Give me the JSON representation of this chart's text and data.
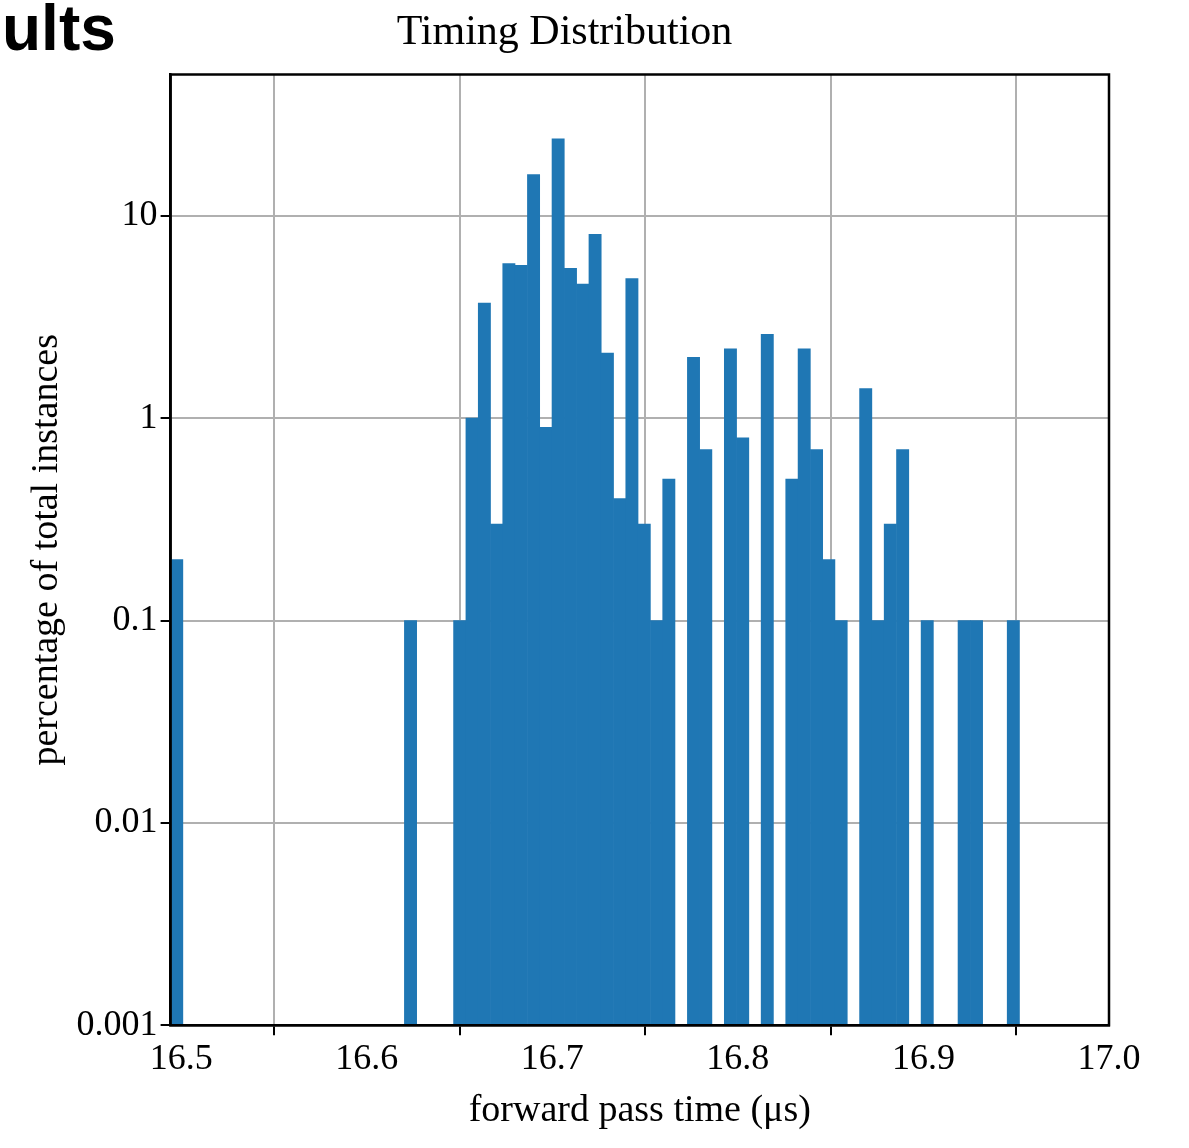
{
  "chart_data": {
    "type": "histogram",
    "title": "Timing Distribution",
    "xlabel": "forward pass time (μs)",
    "ylabel": "percentage of total instances",
    "annotations": [
      "ults"
    ],
    "bins": [
      16.4943,
      16.5009,
      16.5076,
      16.5142,
      16.5208,
      16.5275,
      16.5341,
      16.5407,
      16.5473,
      16.554,
      16.5606,
      16.5672,
      16.5739,
      16.5805,
      16.5871,
      16.5938,
      16.6004,
      16.607,
      16.6136,
      16.6203,
      16.6269,
      16.6335,
      16.6402,
      16.6468,
      16.6534,
      16.6601,
      16.6667,
      16.6733,
      16.6799,
      16.6866,
      16.6932,
      16.6998,
      16.7065,
      16.7131,
      16.7197,
      16.7264,
      16.733,
      16.7396,
      16.7462,
      16.7529,
      16.7595,
      16.7661,
      16.7728,
      16.7794,
      16.786,
      16.7927,
      16.7993,
      16.8059,
      16.8125,
      16.8192,
      16.8258,
      16.8324,
      16.8391,
      16.8457,
      16.8523,
      16.859,
      16.8656,
      16.8722,
      16.8788,
      16.8855,
      16.8921,
      16.8987,
      16.9054,
      16.912,
      16.9186,
      16.9253,
      16.9319,
      16.9385,
      16.9451,
      16.9518
    ],
    "values": [
      0.2,
      null,
      null,
      null,
      null,
      null,
      null,
      null,
      null,
      null,
      null,
      null,
      null,
      null,
      null,
      null,
      null,
      null,
      null,
      0.1,
      null,
      null,
      null,
      0.1,
      1,
      3.7,
      0.3,
      5.8,
      5.7,
      16,
      0.9,
      24,
      5.5,
      4.6,
      8.1,
      2.1,
      0.4,
      4.9,
      0.3,
      0.1,
      0.5,
      null,
      2,
      0.7,
      null,
      2.2,
      0.8,
      null,
      2.6,
      null,
      0.5,
      2.2,
      0.7,
      0.2,
      0.1,
      null,
      1.4,
      0.1,
      0.3,
      0.7,
      null,
      0.1,
      null,
      null,
      0.1,
      0.1,
      null,
      null,
      0.1
    ],
    "color": "#1f77b4",
    "xlim": [
      16.4943,
      17.0
    ],
    "xticks": [
      {
        "value": 16.5,
        "label": "16.5"
      },
      {
        "value": 16.6,
        "label": "16.6"
      },
      {
        "value": 16.7,
        "label": "16.7"
      },
      {
        "value": 16.8,
        "label": "16.8"
      },
      {
        "value": 16.9,
        "label": "16.9"
      },
      {
        "value": 17,
        "label": "17.0"
      }
    ],
    "ylim": [
      0.001,
      50
    ],
    "yticks": [
      0.001,
      0.01,
      0.1,
      1,
      10
    ],
    "log": true,
    "grid": true
  }
}
